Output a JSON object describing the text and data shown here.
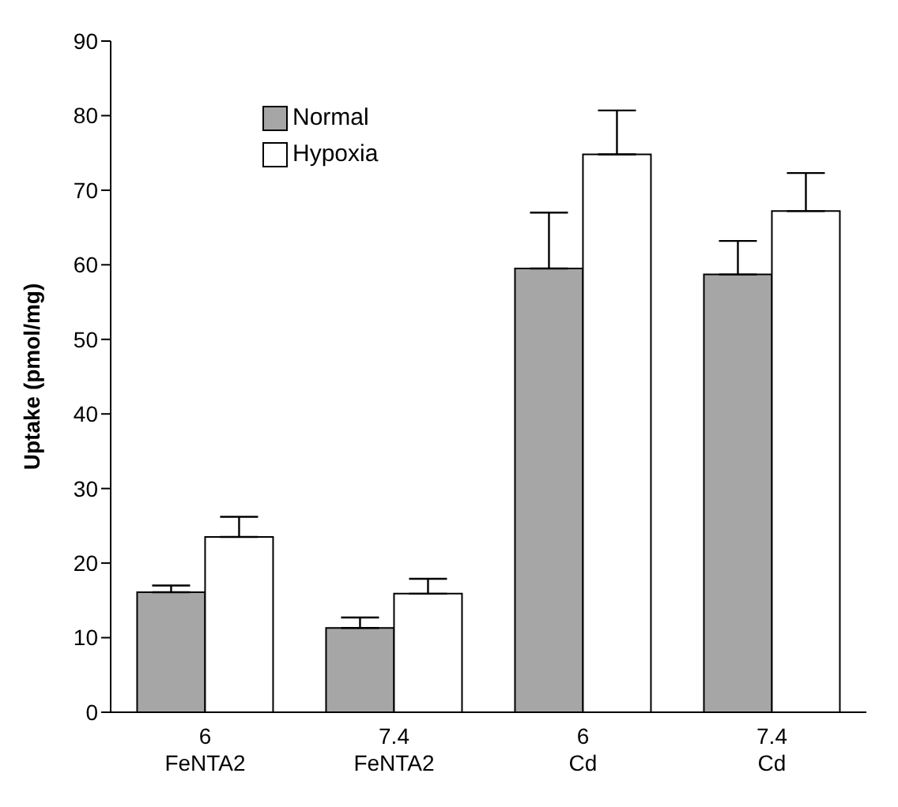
{
  "chart_data": {
    "type": "bar",
    "ylabel": "Uptake (pmol/mg)",
    "categories": [
      "6\nFeNTA2",
      "7.4\nFeNTA2",
      "6\nCd",
      "7.4\nCd"
    ],
    "series": [
      {
        "name": "Normal",
        "color": "#a6a6a6",
        "values": [
          16.1,
          11.3,
          59.5,
          58.7
        ],
        "errors": [
          [
            16.1,
            17.0
          ],
          [
            11.3,
            12.7
          ],
          [
            59.5,
            67.0
          ],
          [
            58.7,
            63.2
          ]
        ]
      },
      {
        "name": "Hypoxia",
        "color": "#ffffff",
        "values": [
          23.5,
          15.9,
          74.8,
          67.2
        ],
        "errors": [
          [
            23.5,
            26.2
          ],
          [
            15.9,
            17.9
          ],
          [
            74.8,
            80.7
          ],
          [
            67.2,
            72.3
          ]
        ]
      }
    ],
    "ylim": [
      0,
      90
    ],
    "yticks": [
      0,
      10,
      20,
      30,
      40,
      50,
      60,
      70,
      80,
      90
    ],
    "grid": false,
    "legend": "top left"
  }
}
